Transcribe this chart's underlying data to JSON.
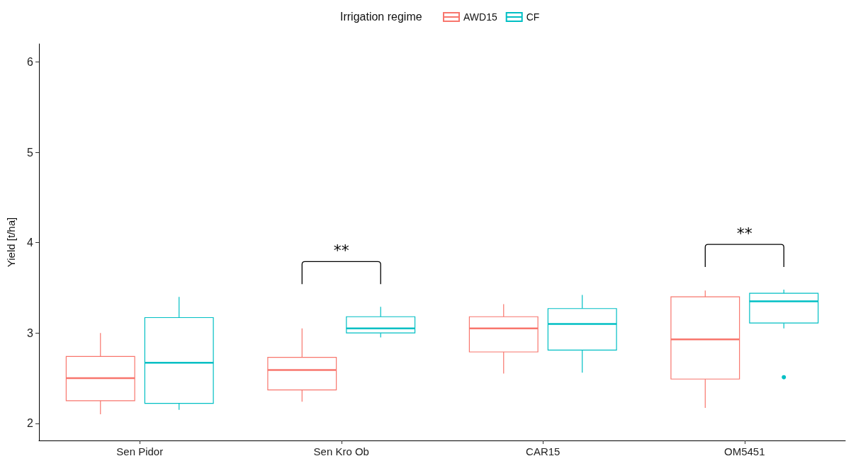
{
  "chart_data": {
    "type": "box",
    "ylabel": "Yield [t/ha]",
    "legend_title": "Irrigation regime",
    "legend": "top",
    "grid": false,
    "categories": [
      "Sen Pidor",
      "Sen Kro Ob",
      "CAR15",
      "OM5451"
    ],
    "ylim": [
      1.81,
      6.2
    ],
    "yticks": [
      2,
      3,
      4,
      5,
      6
    ],
    "series": [
      {
        "name": "AWD15",
        "color": "#f8766d",
        "boxes": [
          {
            "low": 2.1,
            "q1": 2.25,
            "median": 2.5,
            "q3": 2.74,
            "high": 3.0
          },
          {
            "low": 2.24,
            "q1": 2.37,
            "median": 2.59,
            "q3": 2.73,
            "high": 3.05
          },
          {
            "low": 2.55,
            "q1": 2.79,
            "median": 3.05,
            "q3": 3.18,
            "high": 3.32
          },
          {
            "low": 2.17,
            "q1": 2.49,
            "median": 2.93,
            "q3": 3.4,
            "high": 3.47
          }
        ]
      },
      {
        "name": "CF",
        "color": "#00bfc4",
        "boxes": [
          {
            "low": 2.15,
            "q1": 2.22,
            "median": 2.67,
            "q3": 3.17,
            "high": 3.4
          },
          {
            "low": 2.95,
            "q1": 3.0,
            "median": 3.05,
            "q3": 3.18,
            "high": 3.29
          },
          {
            "low": 2.56,
            "q1": 2.81,
            "median": 3.1,
            "q3": 3.27,
            "high": 3.42
          },
          {
            "low": 3.05,
            "q1": 3.11,
            "median": 3.35,
            "q3": 3.44,
            "high": 3.48,
            "outliers": [
              2.51
            ]
          }
        ]
      }
    ],
    "annotations": [
      "**",
      "**"
    ]
  }
}
